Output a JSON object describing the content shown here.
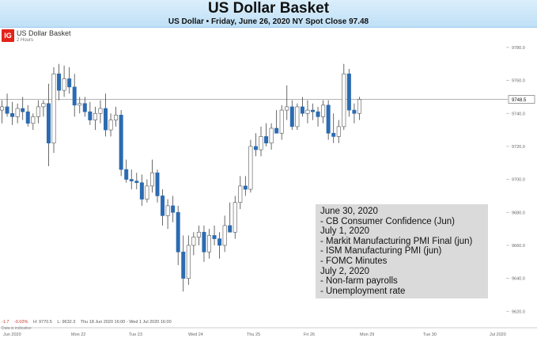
{
  "header": {
    "title": "US Dollar Basket",
    "subtitle": "US Dollar • Friday, June 26, 2020 NY Spot Close 97.48"
  },
  "instrument": {
    "logo": "IG",
    "name": "US Dollar Basket",
    "interval": "2 Hours"
  },
  "ohlc_bar": {
    "change": "-1.7",
    "change_pct": "-0.02%",
    "high": "H: 9770.5",
    "low": "L: 9632.3",
    "range": "Thu 18 Jun 2020 16:00 - Wed 1 Jul 2020 16:00",
    "data_note": "Data is indicative"
  },
  "info_box": {
    "lines": [
      "June 30, 2020",
      "- CB Consumer Confidence (Jun)",
      "July 1, 2020",
      "- Markit Manufacturing PMI Final (jun)",
      "- ISM Manufacturing PMI (jun)",
      "- FOMC Minutes",
      "July 2, 2020",
      "- Non-farm payrolls",
      "- Unemployment rate"
    ]
  },
  "colors": {
    "up": "#ffffff",
    "down": "#2c6bb1",
    "wick": "#444444",
    "current_line": "#aaaaaa",
    "logo": "#e2231a"
  },
  "chart_data": {
    "type": "candlestick",
    "y_tick_labels": [
      "9780.0",
      "9760.0",
      "9740.0",
      "9720.0",
      "9700.0",
      "9680.0",
      "9660.0",
      "9640.0",
      "9620.0"
    ],
    "y_ticks": [
      9780,
      9760,
      9740,
      9720,
      9700,
      9680,
      9660,
      9640,
      9620
    ],
    "ylim": [
      9611,
      9791
    ],
    "x_tick_labels": [
      "Jun 2020",
      "Mon 22",
      "Tue 23",
      "Wed 24",
      "Thu 25",
      "Fri 26",
      "Mon 29",
      "Tue 30",
      "Jul 2020"
    ],
    "current_price": 9748.5,
    "current_price_label": "9748.5",
    "candles": [
      {
        "o": 9742,
        "h": 9748,
        "l": 9734,
        "c": 9744
      },
      {
        "o": 9744,
        "h": 9752,
        "l": 9738,
        "c": 9740
      },
      {
        "o": 9740,
        "h": 9747,
        "l": 9733,
        "c": 9738
      },
      {
        "o": 9738,
        "h": 9746,
        "l": 9734,
        "c": 9743
      },
      {
        "o": 9743,
        "h": 9750,
        "l": 9736,
        "c": 9741
      },
      {
        "o": 9741,
        "h": 9745,
        "l": 9732,
        "c": 9734
      },
      {
        "o": 9734,
        "h": 9740,
        "l": 9730,
        "c": 9738
      },
      {
        "o": 9738,
        "h": 9748,
        "l": 9734,
        "c": 9744
      },
      {
        "o": 9744,
        "h": 9748,
        "l": 9738,
        "c": 9746
      },
      {
        "o": 9746,
        "h": 9758,
        "l": 9708,
        "c": 9722
      },
      {
        "o": 9722,
        "h": 9768,
        "l": 9716,
        "c": 9764
      },
      {
        "o": 9764,
        "h": 9770,
        "l": 9748,
        "c": 9754
      },
      {
        "o": 9754,
        "h": 9769,
        "l": 9750,
        "c": 9761
      },
      {
        "o": 9761,
        "h": 9768,
        "l": 9752,
        "c": 9756
      },
      {
        "o": 9756,
        "h": 9764,
        "l": 9738,
        "c": 9745
      },
      {
        "o": 9745,
        "h": 9750,
        "l": 9740,
        "c": 9746
      },
      {
        "o": 9746,
        "h": 9750,
        "l": 9738,
        "c": 9741
      },
      {
        "o": 9741,
        "h": 9747,
        "l": 9733,
        "c": 9736
      },
      {
        "o": 9736,
        "h": 9744,
        "l": 9730,
        "c": 9740
      },
      {
        "o": 9740,
        "h": 9748,
        "l": 9734,
        "c": 9743
      },
      {
        "o": 9743,
        "h": 9752,
        "l": 9726,
        "c": 9730
      },
      {
        "o": 9730,
        "h": 9740,
        "l": 9726,
        "c": 9736
      },
      {
        "o": 9736,
        "h": 9744,
        "l": 9732,
        "c": 9739
      },
      {
        "o": 9739,
        "h": 9742,
        "l": 9702,
        "c": 9706
      },
      {
        "o": 9706,
        "h": 9712,
        "l": 9698,
        "c": 9700
      },
      {
        "o": 9700,
        "h": 9706,
        "l": 9694,
        "c": 9699
      },
      {
        "o": 9699,
        "h": 9704,
        "l": 9694,
        "c": 9698
      },
      {
        "o": 9698,
        "h": 9703,
        "l": 9684,
        "c": 9688
      },
      {
        "o": 9688,
        "h": 9700,
        "l": 9686,
        "c": 9696
      },
      {
        "o": 9696,
        "h": 9712,
        "l": 9692,
        "c": 9704
      },
      {
        "o": 9704,
        "h": 9706,
        "l": 9686,
        "c": 9690
      },
      {
        "o": 9690,
        "h": 9694,
        "l": 9672,
        "c": 9678
      },
      {
        "o": 9678,
        "h": 9688,
        "l": 9670,
        "c": 9684
      },
      {
        "o": 9684,
        "h": 9690,
        "l": 9674,
        "c": 9680
      },
      {
        "o": 9680,
        "h": 9684,
        "l": 9648,
        "c": 9656
      },
      {
        "o": 9656,
        "h": 9666,
        "l": 9632,
        "c": 9640
      },
      {
        "o": 9640,
        "h": 9666,
        "l": 9636,
        "c": 9660
      },
      {
        "o": 9660,
        "h": 9668,
        "l": 9654,
        "c": 9665
      },
      {
        "o": 9665,
        "h": 9672,
        "l": 9660,
        "c": 9668
      },
      {
        "o": 9668,
        "h": 9672,
        "l": 9650,
        "c": 9656
      },
      {
        "o": 9656,
        "h": 9670,
        "l": 9652,
        "c": 9666
      },
      {
        "o": 9666,
        "h": 9672,
        "l": 9660,
        "c": 9664
      },
      {
        "o": 9664,
        "h": 9668,
        "l": 9652,
        "c": 9660
      },
      {
        "o": 9660,
        "h": 9678,
        "l": 9656,
        "c": 9672
      },
      {
        "o": 9672,
        "h": 9686,
        "l": 9668,
        "c": 9668
      },
      {
        "o": 9668,
        "h": 9690,
        "l": 9664,
        "c": 9686
      },
      {
        "o": 9686,
        "h": 9702,
        "l": 9682,
        "c": 9696
      },
      {
        "o": 9696,
        "h": 9702,
        "l": 9690,
        "c": 9694
      },
      {
        "o": 9694,
        "h": 9724,
        "l": 9692,
        "c": 9720
      },
      {
        "o": 9720,
        "h": 9728,
        "l": 9714,
        "c": 9718
      },
      {
        "o": 9718,
        "h": 9732,
        "l": 9714,
        "c": 9726
      },
      {
        "o": 9726,
        "h": 9734,
        "l": 9720,
        "c": 9722
      },
      {
        "o": 9722,
        "h": 9734,
        "l": 9718,
        "c": 9731
      },
      {
        "o": 9731,
        "h": 9742,
        "l": 9728,
        "c": 9728
      },
      {
        "o": 9728,
        "h": 9745,
        "l": 9724,
        "c": 9742
      },
      {
        "o": 9742,
        "h": 9757,
        "l": 9736,
        "c": 9744
      },
      {
        "o": 9744,
        "h": 9748,
        "l": 9730,
        "c": 9732
      },
      {
        "o": 9732,
        "h": 9746,
        "l": 9730,
        "c": 9744
      },
      {
        "o": 9744,
        "h": 9750,
        "l": 9738,
        "c": 9740
      },
      {
        "o": 9740,
        "h": 9748,
        "l": 9734,
        "c": 9742
      },
      {
        "o": 9742,
        "h": 9746,
        "l": 9736,
        "c": 9741
      },
      {
        "o": 9741,
        "h": 9744,
        "l": 9732,
        "c": 9738
      },
      {
        "o": 9738,
        "h": 9748,
        "l": 9734,
        "c": 9745
      },
      {
        "o": 9745,
        "h": 9748,
        "l": 9724,
        "c": 9728
      },
      {
        "o": 9728,
        "h": 9740,
        "l": 9722,
        "c": 9726
      },
      {
        "o": 9726,
        "h": 9736,
        "l": 9722,
        "c": 9732
      },
      {
        "o": 9732,
        "h": 9770,
        "l": 9730,
        "c": 9764
      },
      {
        "o": 9764,
        "h": 9767,
        "l": 9738,
        "c": 9742
      },
      {
        "o": 9742,
        "h": 9746,
        "l": 9734,
        "c": 9740
      },
      {
        "o": 9740,
        "h": 9750,
        "l": 9736,
        "c": 9748.5
      }
    ]
  }
}
